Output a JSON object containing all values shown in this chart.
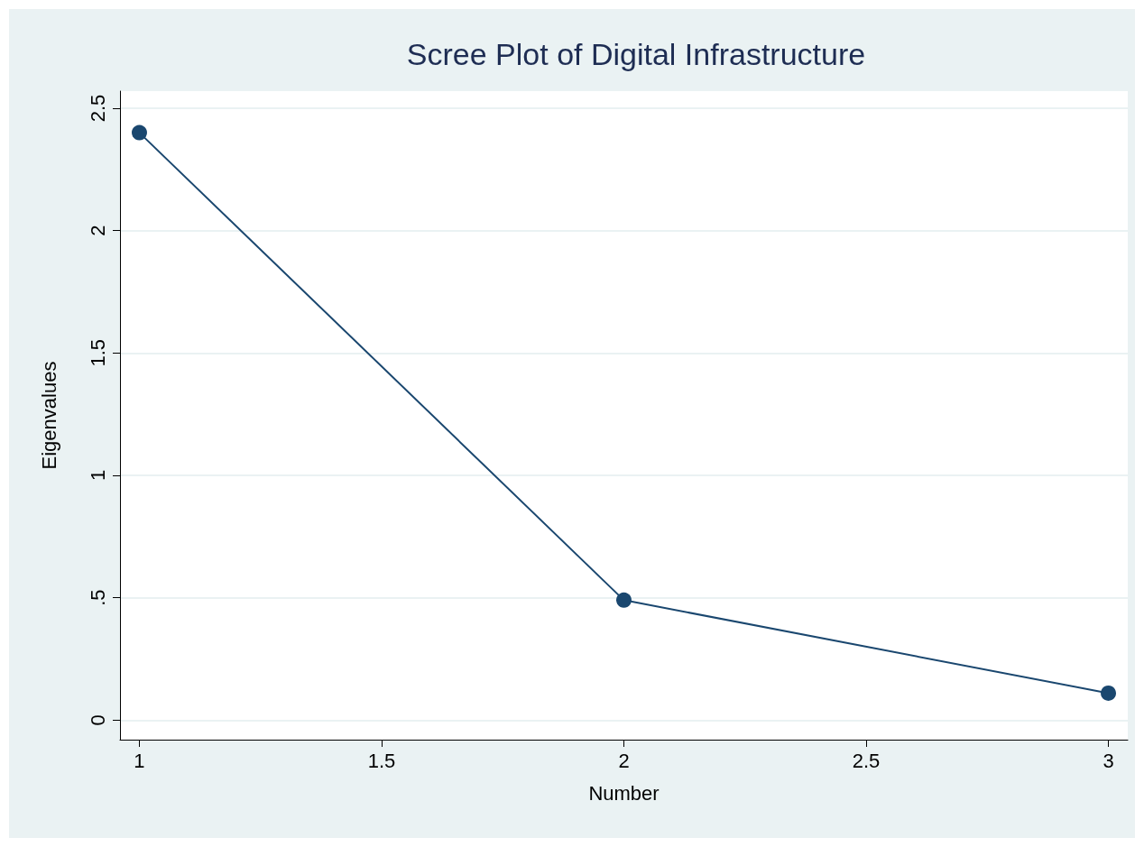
{
  "chart_data": {
    "type": "line",
    "title": "Scree Plot of Digital Infrastructure",
    "xlabel": "Number",
    "ylabel": "Eigenvalues",
    "x": [
      1,
      2,
      3
    ],
    "series": [
      {
        "color": "#1a476f",
        "values": [
          2.4,
          0.49,
          0.11
        ]
      }
    ],
    "xlim": [
      0.96,
      3.04
    ],
    "xticks": [
      1,
      1.5,
      2,
      2.5,
      3
    ],
    "ylim": [
      -0.08,
      2.57
    ],
    "yticks": [
      0,
      {
        "value": 0.5,
        "label": ".5"
      },
      1,
      1.5,
      2,
      2.5
    ],
    "grid": "y",
    "marker": "circle",
    "line_style": "solid"
  }
}
